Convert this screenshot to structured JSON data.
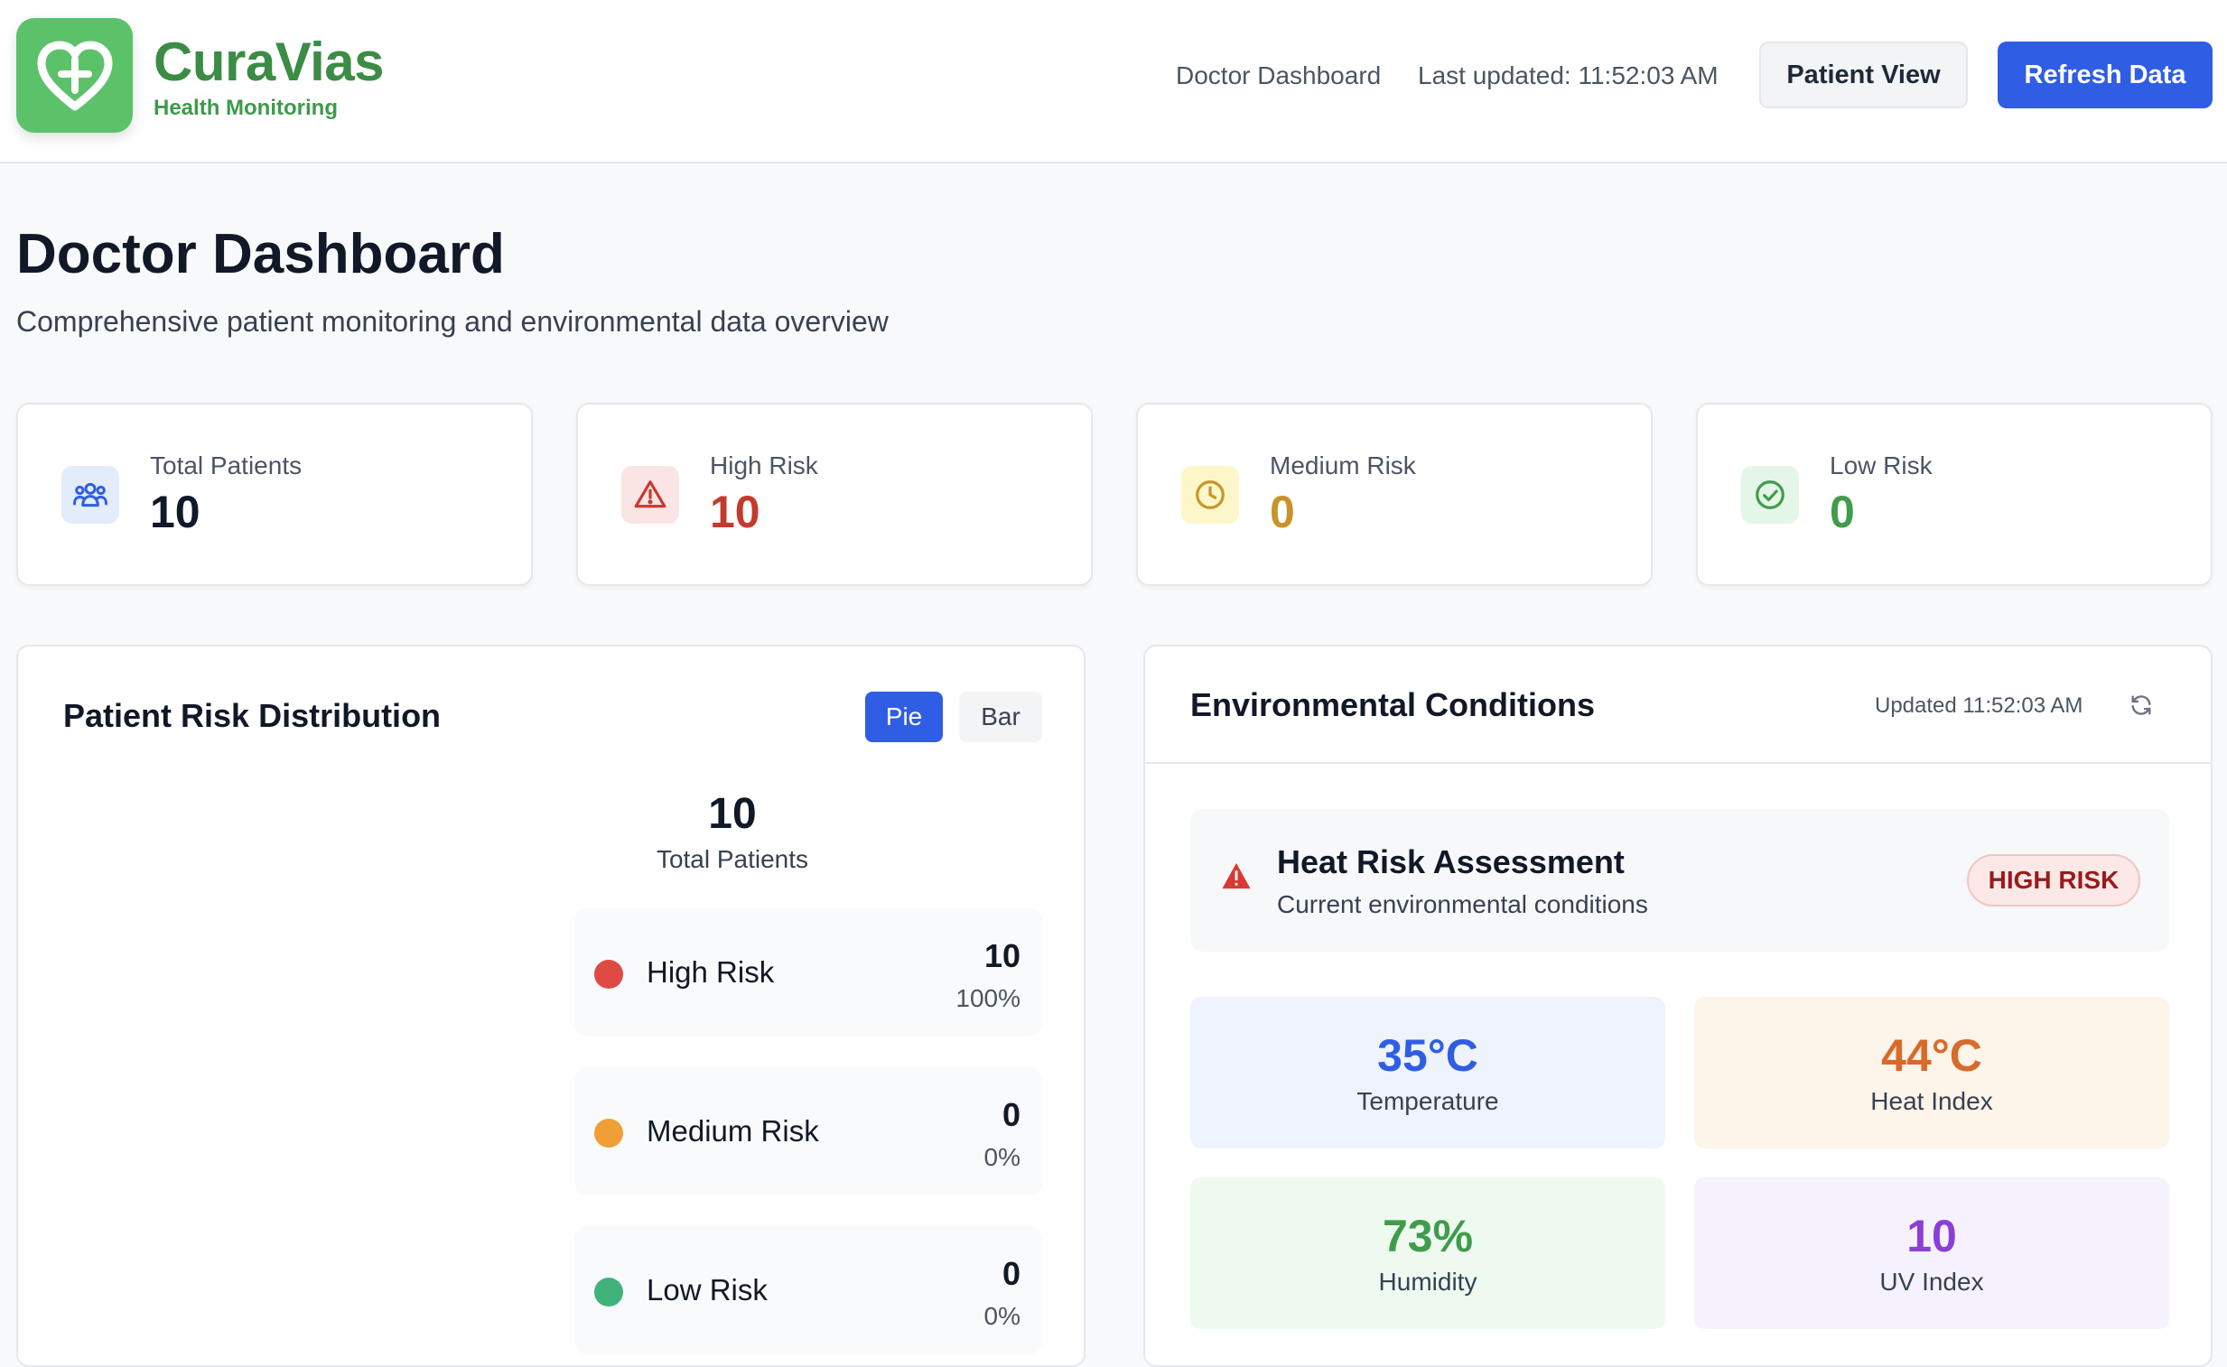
{
  "header": {
    "brand_name": "CuraVias",
    "brand_sub": "Health Monitoring",
    "nav_label": "Doctor Dashboard",
    "last_updated": "Last updated: 11:52:03 AM",
    "patient_view_label": "Patient View",
    "refresh_label": "Refresh Data"
  },
  "page": {
    "title": "Doctor Dashboard",
    "subtitle": "Comprehensive patient monitoring and environmental data overview"
  },
  "stats": [
    {
      "label": "Total Patients",
      "value": "10",
      "icon": "users-icon",
      "color": "#111827",
      "bg": "#e3ecfb"
    },
    {
      "label": "High Risk",
      "value": "10",
      "icon": "alert-triangle-icon",
      "color": "#c53a2e",
      "bg": "#fbe4e4"
    },
    {
      "label": "Medium Risk",
      "value": "0",
      "icon": "clock-icon",
      "color": "#c9932b",
      "bg": "#fdf6c8"
    },
    {
      "label": "Low Risk",
      "value": "0",
      "icon": "check-circle-icon",
      "color": "#3f9c4b",
      "bg": "#e4f6e7"
    }
  ],
  "distribution": {
    "title": "Patient Risk Distribution",
    "toggle_pie": "Pie",
    "toggle_bar": "Bar",
    "total": "10",
    "total_label": "Total Patients",
    "rows": [
      {
        "name": "High Risk",
        "count": "10",
        "pct": "100%",
        "color": "#e04a44"
      },
      {
        "name": "Medium Risk",
        "count": "0",
        "pct": "0%",
        "color": "#ef9f35"
      },
      {
        "name": "Low Risk",
        "count": "0",
        "pct": "0%",
        "color": "#3fb37a"
      }
    ]
  },
  "environment": {
    "title": "Environmental Conditions",
    "updated": "Updated 11:52:03 AM",
    "heat_title": "Heat Risk Assessment",
    "heat_sub": "Current environmental conditions",
    "heat_badge": "HIGH RISK",
    "metrics": [
      {
        "value": "35°C",
        "label": "Temperature",
        "color": "#2f5ee4",
        "bg": "#eef3fd"
      },
      {
        "value": "44°C",
        "label": "Heat Index",
        "color": "#d96a2a",
        "bg": "#fdf4ea"
      },
      {
        "value": "73%",
        "label": "Humidity",
        "color": "#3f9c4b",
        "bg": "#eefaf0"
      },
      {
        "value": "10",
        "label": "UV Index",
        "color": "#8b3fd6",
        "bg": "#f6f2fd"
      }
    ]
  }
}
